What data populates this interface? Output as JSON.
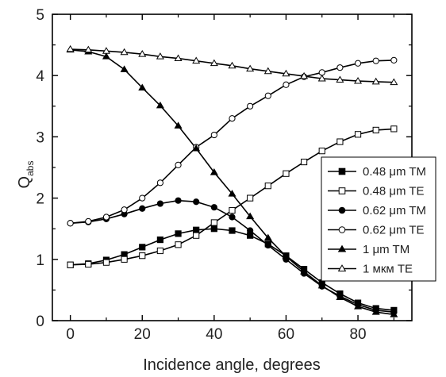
{
  "chart_data": {
    "type": "line",
    "title": "",
    "xlabel": "Incidence angle, degrees",
    "ylabel_main": "Q",
    "ylabel_sub": "abs",
    "xlim": [
      -5,
      95
    ],
    "ylim": [
      0,
      5
    ],
    "xticks": [
      0,
      20,
      40,
      60,
      80
    ],
    "yticks": [
      0,
      1,
      2,
      3,
      4,
      5
    ],
    "grid": false,
    "legend_position": "right",
    "x": [
      0,
      5,
      10,
      15,
      20,
      25,
      30,
      35,
      40,
      45,
      50,
      55,
      60,
      65,
      70,
      75,
      80,
      85,
      90
    ],
    "series": [
      {
        "name": "0.48 μm TM",
        "marker": "square",
        "fill": "filled",
        "values": [
          0.91,
          0.93,
          0.99,
          1.08,
          1.2,
          1.32,
          1.42,
          1.48,
          1.5,
          1.47,
          1.39,
          1.25,
          1.06,
          0.84,
          0.62,
          0.44,
          0.29,
          0.2,
          0.17
        ]
      },
      {
        "name": "0.48 μm TE",
        "marker": "square",
        "fill": "open",
        "values": [
          0.91,
          0.92,
          0.95,
          1.0,
          1.06,
          1.14,
          1.24,
          1.39,
          1.6,
          1.8,
          2.0,
          2.2,
          2.4,
          2.59,
          2.77,
          2.92,
          3.04,
          3.11,
          3.13
        ]
      },
      {
        "name": "0.62 μm TM",
        "marker": "circle",
        "fill": "filled",
        "values": [
          1.59,
          1.61,
          1.66,
          1.74,
          1.83,
          1.91,
          1.96,
          1.94,
          1.85,
          1.69,
          1.47,
          1.23,
          1.0,
          0.77,
          0.56,
          0.4,
          0.26,
          0.17,
          0.14
        ]
      },
      {
        "name": "0.62 μm TE",
        "marker": "circle",
        "fill": "open",
        "values": [
          1.59,
          1.62,
          1.69,
          1.81,
          2.0,
          2.25,
          2.54,
          2.83,
          3.03,
          3.3,
          3.5,
          3.67,
          3.85,
          3.98,
          4.05,
          4.13,
          4.2,
          4.24,
          4.25
        ]
      },
      {
        "name": "1 μm TM",
        "marker": "triangle",
        "fill": "filled",
        "values": [
          4.42,
          4.39,
          4.31,
          4.1,
          3.8,
          3.51,
          3.18,
          2.81,
          2.42,
          2.07,
          1.7,
          1.35,
          1.05,
          0.8,
          0.57,
          0.38,
          0.23,
          0.14,
          0.1
        ]
      },
      {
        "name": "1 мкм TE",
        "marker": "triangle",
        "fill": "open",
        "values": [
          4.43,
          4.42,
          4.4,
          4.38,
          4.35,
          4.31,
          4.28,
          4.24,
          4.2,
          4.16,
          4.11,
          4.07,
          4.03,
          3.99,
          3.95,
          3.93,
          3.91,
          3.9,
          3.89
        ]
      }
    ]
  }
}
